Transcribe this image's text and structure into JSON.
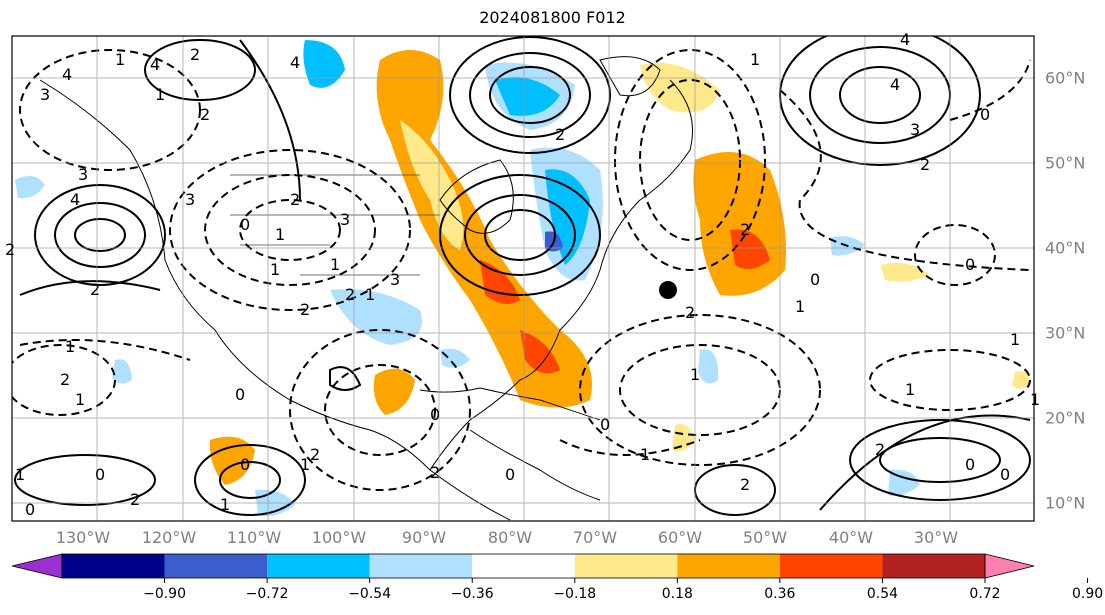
{
  "title": "2024081800 F012",
  "longitude_labels": [
    "130°W",
    "120°W",
    "110°W",
    "100°W",
    "90°W",
    "80°W",
    "70°W",
    "60°W",
    "50°W",
    "40°W",
    "30°W"
  ],
  "latitude_labels": [
    "60°N",
    "50°N",
    "40°N",
    "30°N",
    "20°N",
    "10°N"
  ],
  "colorbar": {
    "ticks": [
      "−0.90",
      "−0.72",
      "−0.54",
      "−0.36",
      "−0.18",
      "0.18",
      "0.36",
      "0.54",
      "0.72",
      "0.90"
    ],
    "colors": [
      "#9b30d0",
      "#00008b",
      "#3a5fcd",
      "#00bfff",
      "#b0e0ff",
      "#ffffff",
      "#ffe98a",
      "#ffa500",
      "#ff4500",
      "#b22222",
      "#ff80b0"
    ]
  },
  "contour_labels": [
    "4",
    "4",
    "3",
    "2",
    "3",
    "4",
    "2",
    "2",
    "3",
    "2",
    "0",
    "1",
    "2",
    "1",
    "0",
    "2",
    "1",
    "3",
    "2",
    "1",
    "0",
    "1",
    "4",
    "4",
    "3",
    "2",
    "2",
    "0",
    "1",
    "2",
    "1",
    "0",
    "0",
    "2",
    "1",
    "0",
    "1",
    "1",
    "2",
    "0",
    "0",
    "0",
    "2",
    "1",
    "1",
    "1",
    "2",
    "3",
    "4",
    "2",
    "1",
    "0",
    "1",
    "2",
    "1",
    "0",
    "1",
    "2",
    "1",
    "0"
  ],
  "marker": "station-dot"
}
